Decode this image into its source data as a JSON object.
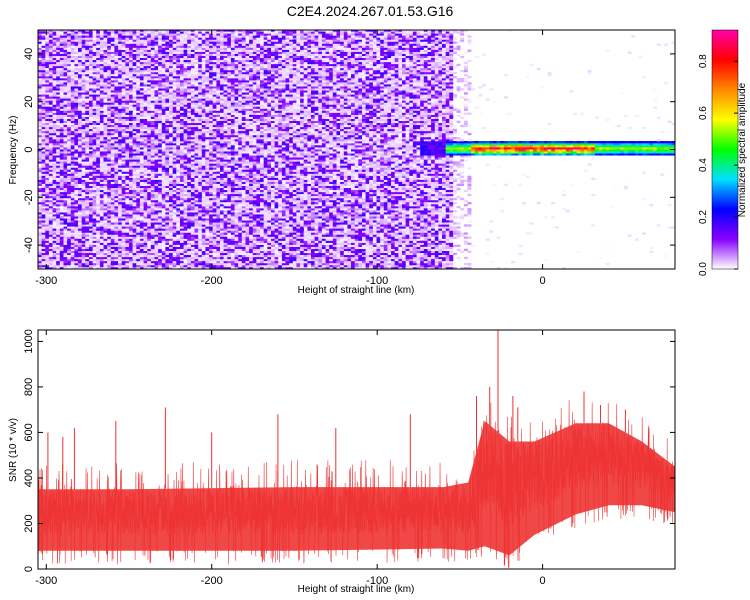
{
  "title": "C2E4.2024.267.01.53.G16",
  "chart_data": [
    {
      "type": "heatmap",
      "xlabel": "Height of straight line (km)",
      "ylabel": "Frequency (Hz)",
      "xlim": [
        -305,
        80
      ],
      "ylim": [
        -50,
        50
      ],
      "x_ticks": [
        -300,
        -200,
        -100,
        0
      ],
      "y_ticks": [
        -40,
        -20,
        0,
        20,
        40
      ],
      "colorbar": {
        "label": "Normalized spectral amplitude",
        "range": [
          0,
          0.92
        ],
        "ticks": [
          0.0,
          0.2,
          0.4,
          0.6,
          0.8
        ],
        "colors": [
          "#ffffff",
          "#8800ff",
          "#0000ff",
          "#00e0ff",
          "#00ff00",
          "#ffff00",
          "#ff8800",
          "#ff0000",
          "#ff00aa"
        ]
      },
      "regions": [
        {
          "name": "noise",
          "x_range": [
            -305,
            -55
          ],
          "freq_range": [
            -50,
            50
          ],
          "amplitude_range": [
            0.0,
            0.15
          ]
        },
        {
          "name": "transition",
          "x_range": [
            -55,
            -45
          ],
          "freq_range": [
            -50,
            50
          ],
          "amplitude_range": [
            0.0,
            0.05
          ]
        },
        {
          "name": "signal",
          "x_range": [
            -75,
            80
          ],
          "freq_center": 0,
          "freq_halfwidth": 3,
          "amplitude_peak": 0.9,
          "peak_x_range": [
            -45,
            30
          ]
        }
      ]
    },
    {
      "type": "line",
      "xlabel": "Height of straight line (km)",
      "ylabel": "SNR (10 * v/v)",
      "xlim": [
        -305,
        80
      ],
      "ylim": [
        0,
        1050
      ],
      "x_ticks": [
        -300,
        -200,
        -100,
        0
      ],
      "y_ticks": [
        0,
        200,
        400,
        600,
        800,
        1000
      ],
      "color": "#ee3333",
      "envelope": [
        {
          "x": -305,
          "low": 80,
          "high": 350
        },
        {
          "x": -250,
          "low": 80,
          "high": 350
        },
        {
          "x": -150,
          "low": 80,
          "high": 360
        },
        {
          "x": -60,
          "low": 90,
          "high": 360
        },
        {
          "x": -45,
          "low": 80,
          "high": 380
        },
        {
          "x": -35,
          "low": 100,
          "high": 650
        },
        {
          "x": -20,
          "low": 60,
          "high": 560
        },
        {
          "x": -5,
          "low": 150,
          "high": 560
        },
        {
          "x": 20,
          "low": 240,
          "high": 640
        },
        {
          "x": 40,
          "low": 280,
          "high": 640
        },
        {
          "x": 60,
          "low": 280,
          "high": 560
        },
        {
          "x": 80,
          "low": 250,
          "high": 450
        }
      ],
      "spikes": [
        {
          "x": -299,
          "y": 600
        },
        {
          "x": -290,
          "y": 580
        },
        {
          "x": -283,
          "y": 620
        },
        {
          "x": -258,
          "y": 650
        },
        {
          "x": -228,
          "y": 710
        },
        {
          "x": -200,
          "y": 600
        },
        {
          "x": -160,
          "y": 680
        },
        {
          "x": -125,
          "y": 620
        },
        {
          "x": -80,
          "y": 680
        },
        {
          "x": -40,
          "y": 760
        },
        {
          "x": -32,
          "y": 800
        },
        {
          "x": -27,
          "y": 1050
        },
        {
          "x": -18,
          "y": 760
        },
        {
          "x": -15,
          "y": 710
        },
        {
          "x": 25,
          "y": 780
        },
        {
          "x": 35,
          "y": 720
        },
        {
          "x": 50,
          "y": 700
        }
      ]
    }
  ]
}
